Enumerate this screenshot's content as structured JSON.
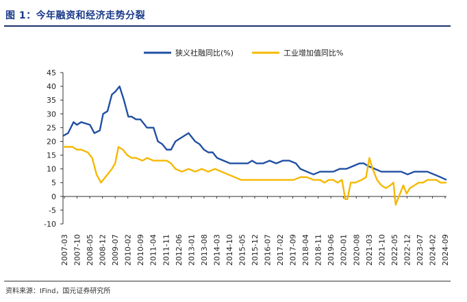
{
  "header": {
    "title": "图 1：今年融资和经济走势分裂",
    "source": "资料来源：IFind，国元证券研究所"
  },
  "chart_data": {
    "type": "line",
    "ylim": [
      -10,
      45
    ],
    "yticks": [
      45,
      40,
      35,
      30,
      25,
      20,
      15,
      10,
      5,
      0,
      -5,
      -10
    ],
    "xlim": [
      2007.17,
      2024.67
    ],
    "xtick_labels": [
      "2007-03",
      "2007-10",
      "2008-05",
      "2008-12",
      "2009-07",
      "2010-02",
      "2010-09",
      "2011-04",
      "2011-11",
      "2012-06",
      "2013-01",
      "2013-08",
      "2014-03",
      "2014-10",
      "2015-05",
      "2015-12",
      "2016-07",
      "2017-02",
      "2017-09",
      "2018-04",
      "2018-11",
      "2019-06",
      "2020-01",
      "2020-08",
      "2021-03",
      "2021-10",
      "2022-05",
      "2022-12",
      "2023-07",
      "2024-02",
      "2024-09"
    ],
    "legend_position": "top-center",
    "grid": false,
    "series": [
      {
        "name": "狭义社融同比(%)",
        "color": "#1f4fa3",
        "x": [
          2007.17,
          2007.4,
          2007.65,
          2007.8,
          2008.0,
          2008.4,
          2008.6,
          2008.85,
          2009.0,
          2009.2,
          2009.4,
          2009.55,
          2009.75,
          2009.95,
          2010.15,
          2010.3,
          2010.5,
          2010.7,
          2010.9,
          2011.0,
          2011.3,
          2011.5,
          2011.7,
          2011.9,
          2012.1,
          2012.3,
          2012.5,
          2012.7,
          2012.9,
          2013.2,
          2013.4,
          2013.6,
          2013.8,
          2014.0,
          2014.2,
          2014.5,
          2014.8,
          2015.0,
          2015.2,
          2015.4,
          2015.6,
          2015.8,
          2016.0,
          2016.3,
          2016.6,
          2016.9,
          2017.2,
          2017.5,
          2017.8,
          2018.0,
          2018.3,
          2018.6,
          2018.9,
          2019.2,
          2019.5,
          2019.8,
          2020.1,
          2020.4,
          2020.7,
          2020.9,
          2021.1,
          2021.4,
          2021.7,
          2022.0,
          2022.3,
          2022.6,
          2022.9,
          2023.2,
          2023.5,
          2023.8,
          2024.1,
          2024.4,
          2024.67
        ],
        "values": [
          22,
          23,
          27,
          26,
          27,
          26,
          23,
          24,
          30,
          31,
          37,
          38,
          40,
          35,
          29,
          29,
          28,
          28,
          26,
          25,
          25,
          20,
          19,
          17,
          17,
          20,
          21,
          22,
          23,
          20,
          19,
          17,
          16,
          16,
          14,
          13,
          12,
          12,
          12,
          12,
          12,
          13,
          12,
          12,
          13,
          12,
          13,
          13,
          12,
          10,
          9,
          8,
          9,
          9,
          9,
          10,
          10,
          11,
          12,
          12,
          11,
          10,
          9,
          9,
          9,
          9,
          8,
          9,
          9,
          9,
          8,
          7,
          6
        ]
      },
      {
        "name": "工业增加值同比%",
        "color": "#f5b800",
        "x": [
          2007.17,
          2007.4,
          2007.6,
          2007.8,
          2008.0,
          2008.3,
          2008.5,
          2008.7,
          2008.9,
          2009.0,
          2009.2,
          2009.4,
          2009.55,
          2009.7,
          2009.9,
          2010.1,
          2010.3,
          2010.5,
          2010.8,
          2011.0,
          2011.3,
          2011.6,
          2011.9,
          2012.1,
          2012.3,
          2012.6,
          2012.9,
          2013.2,
          2013.5,
          2013.8,
          2014.1,
          2014.4,
          2014.7,
          2015.0,
          2015.3,
          2015.6,
          2015.9,
          2016.2,
          2016.5,
          2016.8,
          2017.1,
          2017.4,
          2017.7,
          2018.0,
          2018.3,
          2018.6,
          2018.9,
          2019.1,
          2019.3,
          2019.5,
          2019.7,
          2019.9,
          2020.05,
          2020.15,
          2020.3,
          2020.5,
          2020.8,
          2021.0,
          2021.15,
          2021.3,
          2021.5,
          2021.7,
          2021.9,
          2022.1,
          2022.25,
          2022.35,
          2022.5,
          2022.7,
          2022.85,
          2023.0,
          2023.2,
          2023.4,
          2023.6,
          2023.8,
          2024.0,
          2024.2,
          2024.4,
          2024.67
        ],
        "values": [
          18,
          18,
          18,
          17,
          17,
          16,
          14,
          8,
          5,
          6,
          8,
          10,
          12,
          18,
          17,
          15,
          14,
          14,
          13,
          14,
          13,
          13,
          13,
          12,
          10,
          9,
          10,
          9,
          10,
          9,
          10,
          9,
          8,
          7,
          6,
          6,
          6,
          6,
          6,
          6,
          6,
          6,
          6,
          7,
          7,
          6,
          6,
          5,
          6,
          6,
          5,
          6,
          -1,
          -1,
          5,
          5,
          6,
          7,
          14,
          10,
          6,
          4,
          3,
          4,
          5,
          -3,
          0,
          4,
          1,
          3,
          4,
          5,
          5,
          6,
          6,
          6,
          5,
          5
        ]
      }
    ]
  }
}
